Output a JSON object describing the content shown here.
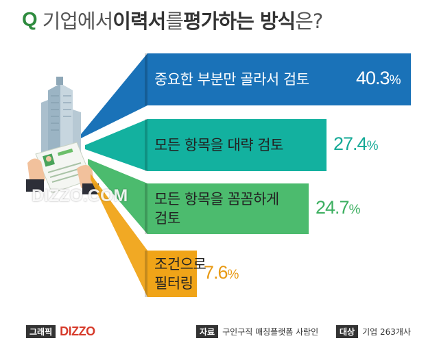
{
  "title": {
    "q": "Q",
    "part1": "기업에서 ",
    "part2": "이력서",
    "part3": "를 ",
    "part4": "평가하는 방식",
    "part5": "은?"
  },
  "chart_data": {
    "type": "bar",
    "categories": [
      "중요한 부분만 골라서 검토",
      "모든 항목을 대략 검토",
      "모든 항목을 꼼꼼하게 검토",
      "조건으로 필터링"
    ],
    "values": [
      40.3,
      27.4,
      24.7,
      7.6
    ],
    "value_labels": [
      {
        "num": "40.3",
        "unit": "%"
      },
      {
        "num": "27.4",
        "unit": "%"
      },
      {
        "num": "24.7",
        "unit": "%"
      },
      {
        "num": "7.6",
        "unit": "%"
      }
    ],
    "category_lines": [
      [
        "중요한 부분만 골라서 검토"
      ],
      [
        "모든 항목을 대략 검토"
      ],
      [
        "모든 항목을 꼼꼼하게",
        "검토"
      ],
      [
        "조건으로",
        "필터링"
      ]
    ],
    "colors": [
      "#1a72b8",
      "#13b19f",
      "#4cbb6e",
      "#f0a418"
    ],
    "label_colors": [
      "#ffffff",
      "#13a996",
      "#3caf60",
      "#e89a14"
    ]
  },
  "watermark": "DIZZO.COM",
  "footer": {
    "left_tag": "그래픽",
    "logo": "DIZZO",
    "source_tag": "자료",
    "source": "구인구직 매칭플랫폼 사람인",
    "target_tag": "대상",
    "target": "기업 263개사"
  }
}
